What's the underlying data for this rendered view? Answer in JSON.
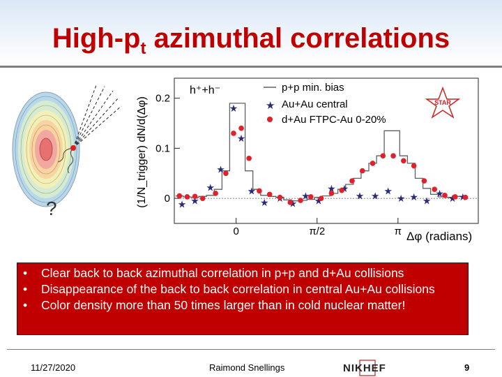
{
  "slide": {
    "title_main": "High-p",
    "title_sub": "t",
    "title_rest": " azimuthal correlations"
  },
  "chart_data": {
    "type": "scatter",
    "ylabel": "(1/N_trigger) dN/d(Δφ)",
    "xlabel": "Δφ (radians)",
    "x_tick_labels": [
      "0",
      "π/2",
      "π"
    ],
    "y_tick_labels": [
      "0",
      "0.1",
      "0.2"
    ],
    "xlim": [
      -1.2,
      4.7
    ],
    "ylim": [
      -0.05,
      0.24
    ],
    "particle_label": "h⁺+h⁻",
    "star_logo_text": "STAR",
    "legend_position": "top-center",
    "series": [
      {
        "name": "p+p min. bias",
        "style": "step-line",
        "color": "#606060",
        "x": [
          -1.1,
          -0.95,
          -0.8,
          -0.65,
          -0.5,
          -0.35,
          -0.2,
          -0.05,
          0.1,
          0.25,
          0.4,
          0.55,
          0.7,
          0.85,
          1.0,
          1.15,
          1.3,
          1.45,
          1.6,
          1.75,
          1.9,
          2.05,
          2.2,
          2.35,
          2.5,
          2.65,
          2.8,
          2.95,
          3.1,
          3.25,
          3.4,
          3.55,
          3.7,
          3.85,
          4.0,
          4.15,
          4.3
        ],
        "values": [
          0.005,
          0.003,
          0.002,
          0.004,
          0.006,
          0.018,
          0.055,
          0.19,
          0.19,
          0.055,
          0.018,
          0.006,
          0.004,
          0.002,
          -0.003,
          -0.005,
          -0.004,
          -0.002,
          0.002,
          0.005,
          0.01,
          0.018,
          0.028,
          0.04,
          0.055,
          0.07,
          0.085,
          0.135,
          0.135,
          0.085,
          0.07,
          0.04,
          0.02,
          0.008,
          0.003,
          0.002,
          0.004
        ]
      },
      {
        "name": "Au+Au central",
        "style": "star",
        "color": "#2a2a78",
        "x": [
          -1.05,
          -0.8,
          -0.5,
          -0.3,
          -0.05,
          0.1,
          0.3,
          0.55,
          0.85,
          1.1,
          1.35,
          1.6,
          1.85,
          2.1,
          2.4,
          2.7,
          2.95,
          3.2,
          3.45,
          3.7,
          3.95,
          4.2,
          4.4
        ],
        "values": [
          -0.012,
          -0.005,
          0.022,
          0.058,
          0.18,
          0.12,
          0.015,
          -0.008,
          0.0,
          -0.01,
          0.005,
          -0.005,
          0.02,
          0.02,
          0.005,
          0.005,
          0.015,
          0.0,
          0.003,
          -0.005,
          0.01,
          0.0,
          0.003
        ]
      },
      {
        "name": "d+Au FTPC-Au 0-20%",
        "style": "dot",
        "color": "#e0202a",
        "x": [
          -1.1,
          -0.95,
          -0.8,
          -0.65,
          -0.4,
          -0.2,
          -0.05,
          0.1,
          0.25,
          0.45,
          0.65,
          0.85,
          1.05,
          1.25,
          1.45,
          1.65,
          1.85,
          2.05,
          2.25,
          2.45,
          2.65,
          2.85,
          3.05,
          3.25,
          3.45,
          3.65,
          3.85,
          4.05,
          4.25,
          4.45
        ],
        "values": [
          0.005,
          0.003,
          0.004,
          0.0,
          0.01,
          0.05,
          0.13,
          0.14,
          0.08,
          0.015,
          0.008,
          0.002,
          -0.008,
          -0.004,
          0.003,
          0.0,
          0.01,
          0.016,
          0.035,
          0.055,
          0.07,
          0.085,
          0.085,
          0.075,
          0.065,
          0.035,
          0.018,
          0.006,
          0.003,
          0.002
        ]
      }
    ]
  },
  "cartoon": {
    "question_mark": "?"
  },
  "bullets": [
    "Clear back to back azimuthal correlation in p+p and d+Au collisions",
    "Disappearance of the back to back correlation in central Au+Au collisions",
    "Color density more than 50 times larger than in cold nuclear matter!"
  ],
  "bullet_glyph": "•",
  "footer": {
    "date": "11/27/2020",
    "author": "Raimond Snellings",
    "logo_text": "NIKHEF",
    "page_number": "9"
  }
}
